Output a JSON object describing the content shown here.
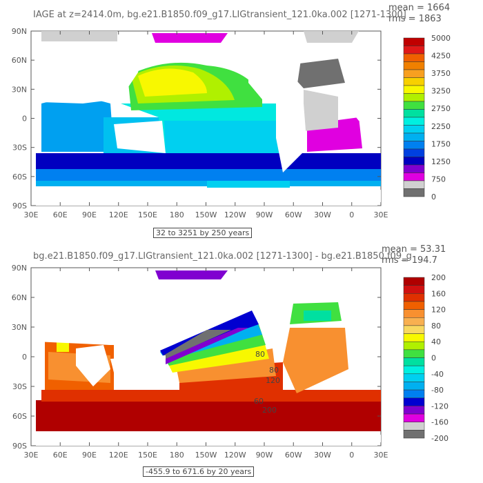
{
  "chart_data": [
    {
      "type": "heatmap",
      "title": "IAGE at z=2414.0m, bg.e21.B1850.f09_g17.LIGtransient_121.0ka.002 [1271-1300]",
      "stats": [
        "mean = 1664",
        "rms = 1863"
      ],
      "x_tick_labels": [
        "30E",
        "60E",
        "90E",
        "120E",
        "150E",
        "180",
        "150W",
        "120W",
        "90W",
        "60W",
        "30W",
        "0",
        "30E"
      ],
      "y_tick_labels": [
        "90N",
        "60N",
        "30N",
        "0",
        "30S",
        "60S",
        "90S"
      ],
      "colorbar": {
        "labels": [
          "5000",
          "4250",
          "3750",
          "3250",
          "2750",
          "2250",
          "1750",
          "1250",
          "750",
          "0"
        ],
        "colors": [
          "#c00000",
          "#e01818",
          "#f06000",
          "#f08000",
          "#f8a020",
          "#f8d000",
          "#f8f800",
          "#b0f000",
          "#40e040",
          "#00e0a0",
          "#00f0e0",
          "#00d0f0",
          "#00b0f0",
          "#0080f0",
          "#0040e0",
          "#0000c0",
          "#8000d0",
          "#e000e0",
          "#d0d0d0",
          "#707070"
        ]
      },
      "contour_label": "32 to 3251 by 250 years"
    },
    {
      "type": "heatmap",
      "title": "bg.e21.B1850.f09_g17.LIGtransient_121.0ka.002 [1271-1300] - bg.e21.B1850.f09_g",
      "stats": [
        "mean = 53.31",
        "rms = 194.7"
      ],
      "x_tick_labels": [
        "30E",
        "60E",
        "90E",
        "120E",
        "150E",
        "180",
        "150W",
        "120W",
        "90W",
        "60W",
        "30W",
        "0",
        "30E"
      ],
      "y_tick_labels": [
        "90N",
        "60N",
        "30N",
        "0",
        "30S",
        "60S",
        "90S"
      ],
      "colorbar": {
        "labels": [
          "200",
          "160",
          "120",
          "80",
          "40",
          "0",
          "-40",
          "-80",
          "-120",
          "-160",
          "-200"
        ],
        "colors": [
          "#b00000",
          "#d01010",
          "#e03000",
          "#f06000",
          "#f89030",
          "#f8b050",
          "#f8d860",
          "#f8f800",
          "#b0f000",
          "#40e040",
          "#00e0a0",
          "#00f0e0",
          "#00d0f0",
          "#00b0f0",
          "#0080f0",
          "#0000d0",
          "#8000d0",
          "#e000e0",
          "#d0d0d0",
          "#707070"
        ]
      },
      "contour_labels": [
        "80",
        "80",
        "120",
        "60",
        "200"
      ],
      "contour_label": "-455.9 to 671.6 by 20 years"
    }
  ]
}
